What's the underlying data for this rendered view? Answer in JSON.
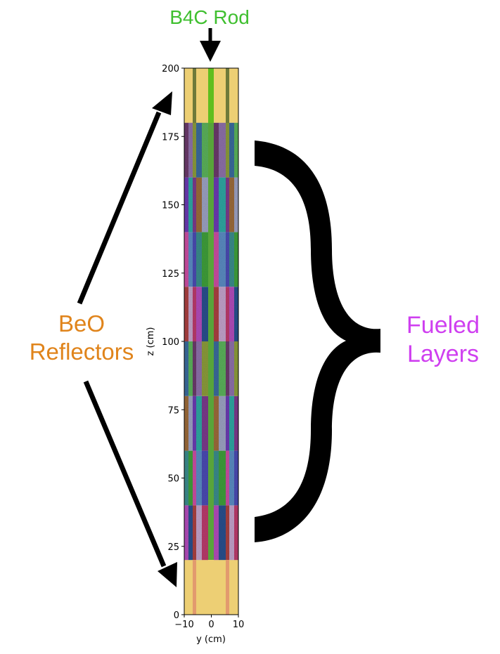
{
  "annotations": {
    "rod_label": "B4C Rod",
    "beo_label_line1": "BeO",
    "beo_label_line2": "Reflectors",
    "fuel_label_line1": "Fueled",
    "fuel_label_line2": "Layers"
  },
  "colors": {
    "rod": "#3fbf2f",
    "beo": "#e0841b",
    "fuel": "#cf3ff0",
    "reflector_fill": "#edcf74"
  },
  "axes": {
    "xlabel": "y (cm)",
    "ylabel": "z (cm)",
    "xlim": [
      -10,
      10
    ],
    "ylim": [
      0,
      200
    ],
    "xticks": [
      "−10",
      "0",
      "10"
    ],
    "yticks": [
      "0",
      "25",
      "50",
      "75",
      "100",
      "125",
      "150",
      "175",
      "200"
    ]
  },
  "core_structure": {
    "bottom_reflector_z": [
      0,
      20
    ],
    "fuel_z": [
      20,
      180
    ],
    "top_reflector_z": [
      180,
      200
    ],
    "fuel_layer_boundaries_z": [
      20,
      40,
      60,
      80,
      100,
      120,
      140,
      160,
      180
    ],
    "rod_center_y": 0
  }
}
